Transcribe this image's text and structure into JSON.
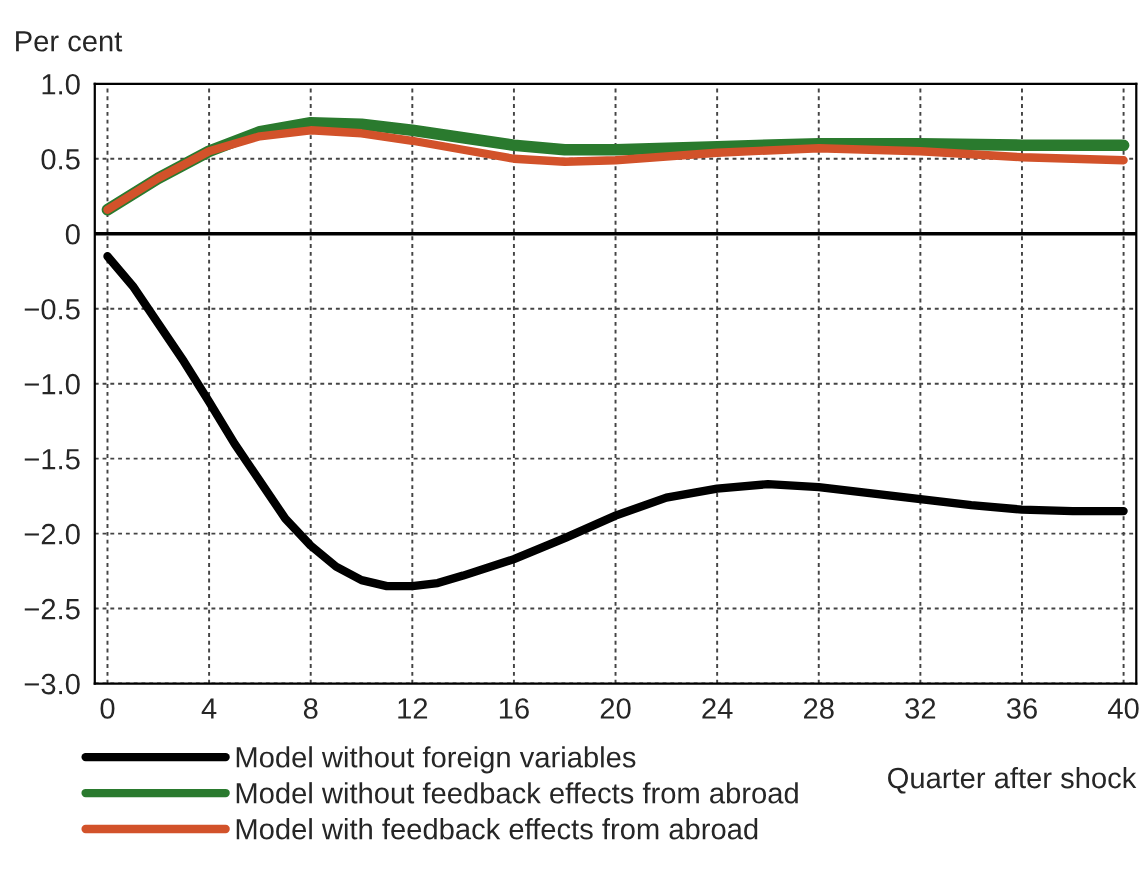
{
  "chart_data": {
    "type": "line",
    "ylabel": "Per cent",
    "xlabel": "Quarter after shock",
    "series": [
      {
        "name": "Model without foreign variables",
        "color": "#000000",
        "x": [
          0,
          1,
          2,
          3,
          4,
          5,
          6,
          7,
          8,
          9,
          10,
          11,
          12,
          13,
          14,
          16,
          18,
          20,
          22,
          24,
          26,
          28,
          30,
          32,
          34,
          36,
          38,
          40
        ],
        "values": [
          -0.15,
          -0.35,
          -0.6,
          -0.85,
          -1.12,
          -1.4,
          -1.65,
          -1.9,
          -2.08,
          -2.22,
          -2.31,
          -2.35,
          -2.35,
          -2.33,
          -2.28,
          -2.17,
          -2.03,
          -1.88,
          -1.76,
          -1.7,
          -1.67,
          -1.69,
          -1.73,
          -1.77,
          -1.81,
          -1.84,
          -1.85,
          -1.85
        ]
      },
      {
        "name": "Model without feedback effects from abroad",
        "color": "#2a7a2e",
        "x": [
          0,
          2,
          4,
          6,
          8,
          10,
          12,
          14,
          16,
          18,
          20,
          24,
          28,
          32,
          36,
          40
        ],
        "values": [
          0.16,
          0.37,
          0.55,
          0.68,
          0.74,
          0.73,
          0.69,
          0.64,
          0.59,
          0.56,
          0.56,
          0.58,
          0.6,
          0.6,
          0.59,
          0.59
        ]
      },
      {
        "name": "Model with feedback effects from abroad",
        "color": "#d2522a",
        "x": [
          0,
          2,
          4,
          6,
          8,
          10,
          12,
          14,
          16,
          18,
          20,
          24,
          28,
          32,
          36,
          40
        ],
        "values": [
          0.16,
          0.37,
          0.55,
          0.65,
          0.69,
          0.67,
          0.62,
          0.56,
          0.5,
          0.48,
          0.49,
          0.54,
          0.57,
          0.55,
          0.51,
          0.49
        ]
      }
    ],
    "xlim": [
      -0.5,
      40.5
    ],
    "xticks": [
      0,
      4,
      8,
      12,
      16,
      20,
      24,
      28,
      32,
      36,
      40
    ],
    "ylim": [
      -3.0,
      1.0
    ],
    "yticks": [
      {
        "value": -3.0,
        "label": "−3.0"
      },
      {
        "value": -2.5,
        "label": "−2.5"
      },
      {
        "value": -2.0,
        "label": "−2.0"
      },
      {
        "value": -1.5,
        "label": "−1.5"
      },
      {
        "value": -1.0,
        "label": "−1.0"
      },
      {
        "value": -0.5,
        "label": "−0.5"
      },
      {
        "value": 0,
        "label": "0"
      },
      {
        "value": 0.5,
        "label": "0.5"
      },
      {
        "value": 1.0,
        "label": "1.0"
      }
    ],
    "ref_lines": [
      {
        "axis": "y",
        "value": 0,
        "color": "#000000",
        "line_style": "solid"
      }
    ],
    "grid": true,
    "legend": "bottom left",
    "marker": "none",
    "line_style": "solid"
  }
}
